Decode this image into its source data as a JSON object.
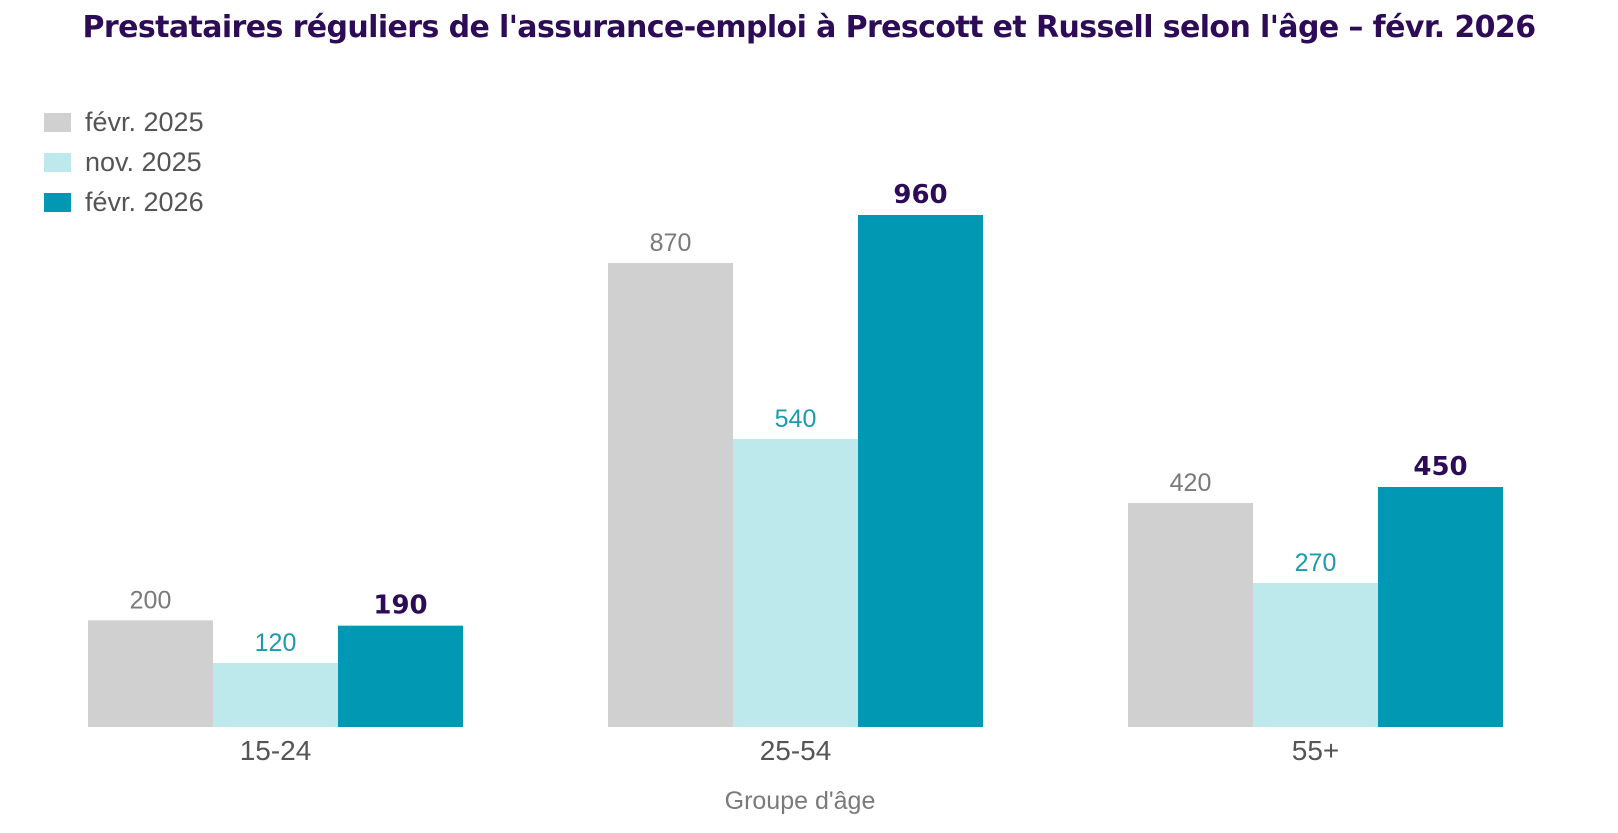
{
  "chart_data": {
    "type": "bar",
    "title": "Prestataires réguliers de l'assurance-emploi à Prescott et Russell selon l'âge – févr. 2026",
    "xlabel": "Groupe d'âge",
    "ylabel": "",
    "categories": [
      "15-24",
      "25-54",
      "55+"
    ],
    "series": [
      {
        "name": "févr. 2025",
        "values": [
          200,
          870,
          420
        ],
        "color": "#d0d0d0",
        "label_color": "#7a7a7a",
        "label_bold": false
      },
      {
        "name": "nov. 2025",
        "values": [
          120,
          540,
          270
        ],
        "color": "#bde9ec",
        "label_color": "#1a9bb0",
        "label_bold": false
      },
      {
        "name": "févr. 2026",
        "values": [
          190,
          960,
          450
        ],
        "color": "#0098b2",
        "label_color": "#2e0b57",
        "label_bold": true
      }
    ],
    "ylim": [
      0,
      960
    ],
    "grid": false,
    "legend_position": "top-left",
    "data_labels": true
  }
}
